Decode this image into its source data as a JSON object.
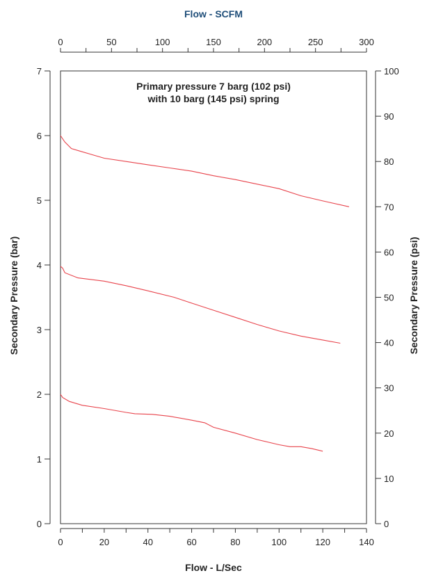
{
  "chart_data": {
    "type": "line",
    "title": "Primary pressure 7 barg (102 psi)",
    "subtitle": "with 10 barg (145 psi) spring",
    "xlabel": "Flow - L/Sec",
    "x2label": "Flow - SCFM",
    "ylabel": "Secondary Pressure (bar)",
    "y2label": "Secondary Pressure (psi)",
    "xlim": [
      0,
      140
    ],
    "x2lim": [
      0,
      300
    ],
    "ylim": [
      0,
      7
    ],
    "y2lim": [
      0,
      100
    ],
    "xticks": [
      "0",
      "20",
      "40",
      "60",
      "80",
      "100",
      "120",
      "140"
    ],
    "x2ticks": [
      "0",
      "50",
      "100",
      "150",
      "200",
      "250",
      "300"
    ],
    "yticks": [
      "0",
      "1",
      "2",
      "3",
      "4",
      "5",
      "6",
      "7"
    ],
    "y2ticks": [
      "0",
      "10",
      "20",
      "30",
      "40",
      "50",
      "60",
      "70",
      "80",
      "90",
      "100"
    ],
    "grid": false,
    "line_color": "#e8434b",
    "series": [
      {
        "values": [
          [
            0,
            6.0
          ],
          [
            2,
            5.9
          ],
          [
            5,
            5.8
          ],
          [
            10,
            5.75
          ],
          [
            20,
            5.65
          ],
          [
            30,
            5.6
          ],
          [
            40,
            5.55
          ],
          [
            50,
            5.5
          ],
          [
            60,
            5.45
          ],
          [
            70,
            5.38
          ],
          [
            80,
            5.32
          ],
          [
            90,
            5.25
          ],
          [
            100,
            5.18
          ],
          [
            110,
            5.07
          ],
          [
            120,
            4.99
          ],
          [
            132,
            4.9
          ]
        ]
      },
      {
        "values": [
          [
            0,
            3.98
          ],
          [
            1,
            3.95
          ],
          [
            2,
            3.88
          ],
          [
            8,
            3.8
          ],
          [
            20,
            3.75
          ],
          [
            30,
            3.68
          ],
          [
            40,
            3.6
          ],
          [
            52,
            3.5
          ],
          [
            60,
            3.41
          ],
          [
            70,
            3.3
          ],
          [
            80,
            3.19
          ],
          [
            90,
            3.08
          ],
          [
            100,
            2.98
          ],
          [
            110,
            2.9
          ],
          [
            120,
            2.84
          ],
          [
            128,
            2.79
          ]
        ]
      },
      {
        "values": [
          [
            0,
            2.0
          ],
          [
            1,
            1.95
          ],
          [
            4,
            1.89
          ],
          [
            10,
            1.83
          ],
          [
            20,
            1.78
          ],
          [
            30,
            1.72
          ],
          [
            34,
            1.7
          ],
          [
            42,
            1.69
          ],
          [
            50,
            1.66
          ],
          [
            60,
            1.6
          ],
          [
            66,
            1.56
          ],
          [
            70,
            1.49
          ],
          [
            80,
            1.4
          ],
          [
            90,
            1.3
          ],
          [
            100,
            1.22
          ],
          [
            105,
            1.19
          ],
          [
            110,
            1.19
          ],
          [
            115,
            1.16
          ],
          [
            120,
            1.12
          ]
        ]
      }
    ]
  }
}
